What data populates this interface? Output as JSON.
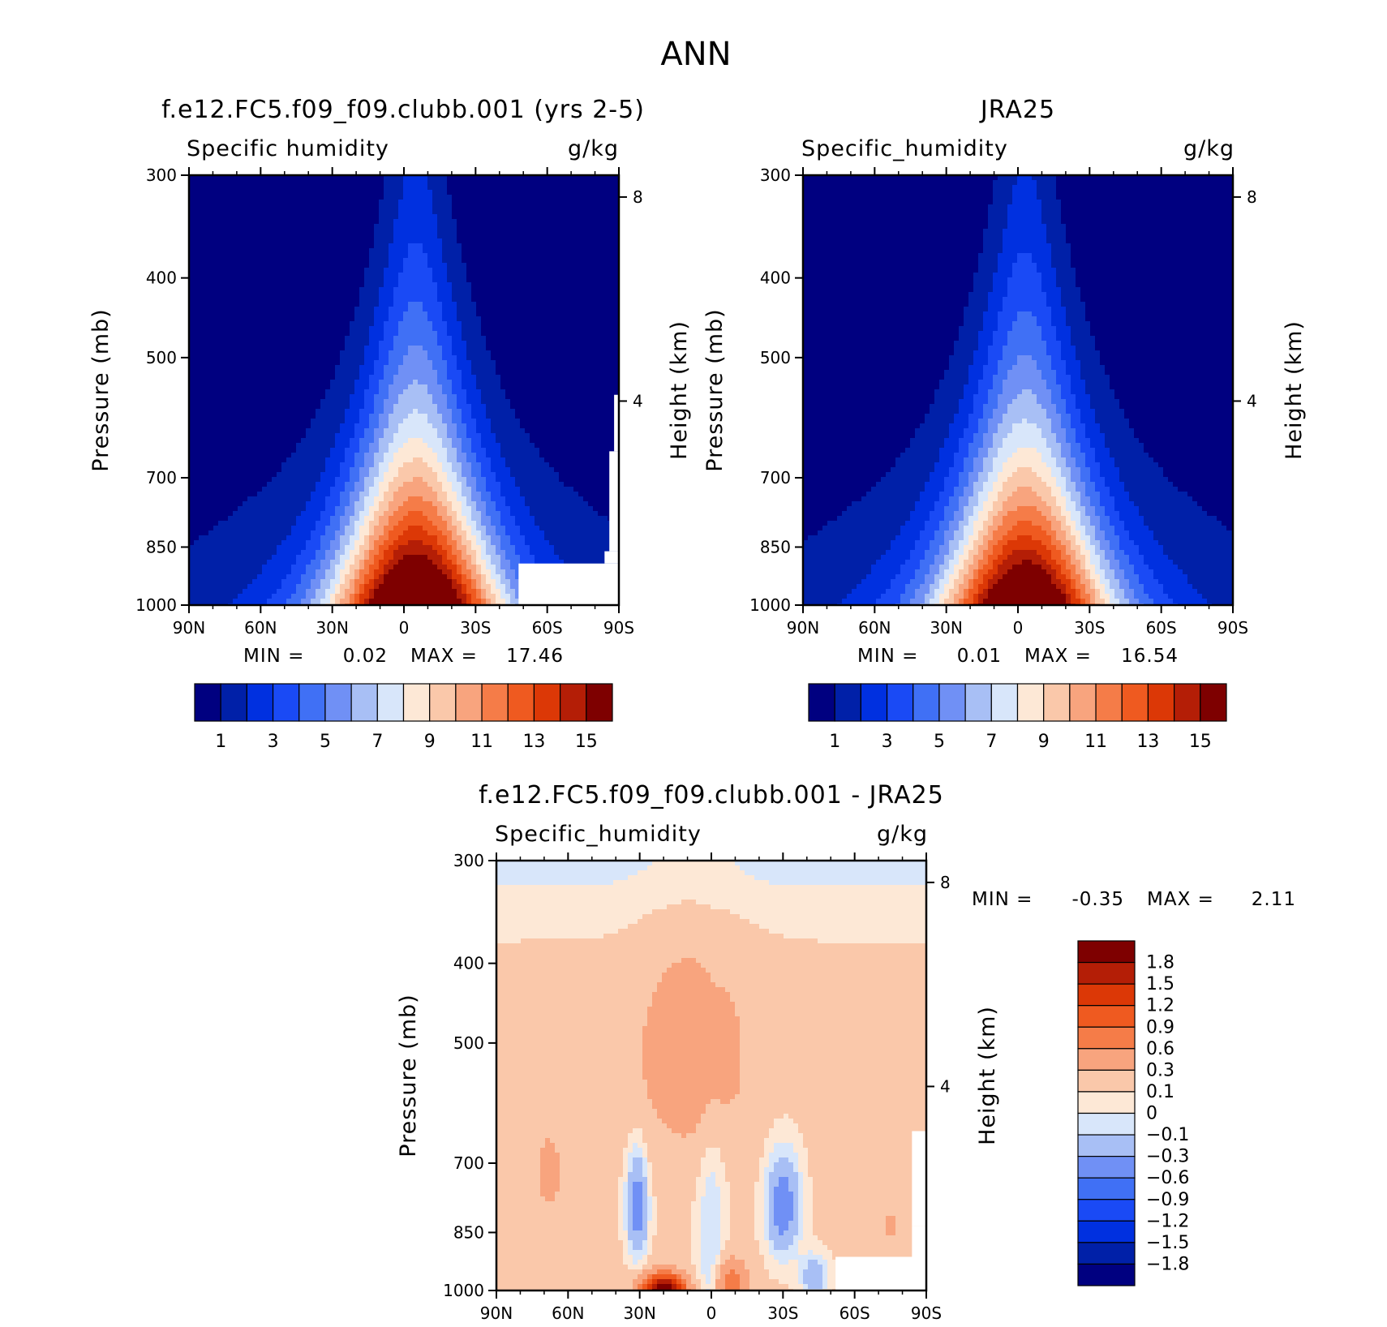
{
  "main_title": "ANN",
  "chart_data": [
    {
      "type": "heatmap",
      "title": "f.e12.FC5.f09_f09.clubb.001 (yrs 2-5)",
      "variable_label": "Specific humidity",
      "units": "g/kg",
      "ylabel": "Pressure (mb)",
      "y2label": "Height (km)",
      "x_ticks": [
        "90N",
        "60N",
        "30N",
        "0",
        "30S",
        "60S",
        "90S"
      ],
      "y_ticks": [
        "300",
        "400",
        "500",
        "700",
        "850",
        "1000"
      ],
      "y2_ticks": [
        "8",
        "4"
      ],
      "ylim": [
        1000,
        300
      ],
      "log_pressure": true,
      "contour_levels": [
        1,
        2,
        3,
        4,
        5,
        6,
        7,
        8,
        9,
        10,
        11,
        12,
        13,
        14,
        15
      ],
      "peak_latitude": -5,
      "peak_value": 17.46,
      "stat_min_label": "MIN =",
      "stat_min": "0.02",
      "stat_max_label": "MAX =",
      "stat_max": "17.46",
      "colorbar_labels": [
        "1",
        "3",
        "5",
        "7",
        "9",
        "11",
        "13",
        "15"
      ],
      "colors": [
        "#000080",
        "#0020a8",
        "#0030e0",
        "#1a4af5",
        "#4070f5",
        "#7090f5",
        "#a8bff5",
        "#d8e6fa",
        "#fde8d6",
        "#fac8aa",
        "#f8a47e",
        "#f57c48",
        "#ef5a20",
        "#dc3806",
        "#b41e06",
        "#7e0000"
      ]
    },
    {
      "type": "heatmap",
      "title": "JRA25",
      "variable_label": "Specific_humidity",
      "units": "g/kg",
      "ylabel": "Pressure (mb)",
      "y2label": "Height (km)",
      "x_ticks": [
        "90N",
        "60N",
        "30N",
        "0",
        "30S",
        "60S",
        "90S"
      ],
      "y_ticks": [
        "300",
        "400",
        "500",
        "700",
        "850",
        "1000"
      ],
      "y2_ticks": [
        "8",
        "4"
      ],
      "ylim": [
        1000,
        300
      ],
      "log_pressure": true,
      "contour_levels": [
        1,
        2,
        3,
        4,
        5,
        6,
        7,
        8,
        9,
        10,
        11,
        12,
        13,
        14,
        15
      ],
      "peak_latitude": -3,
      "peak_value": 16.54,
      "stat_min_label": "MIN =",
      "stat_min": "0.01",
      "stat_max_label": "MAX =",
      "stat_max": "16.54",
      "colorbar_labels": [
        "1",
        "3",
        "5",
        "7",
        "9",
        "11",
        "13",
        "15"
      ],
      "colors": [
        "#000080",
        "#0020a8",
        "#0030e0",
        "#1a4af5",
        "#4070f5",
        "#7090f5",
        "#a8bff5",
        "#d8e6fa",
        "#fde8d6",
        "#fac8aa",
        "#f8a47e",
        "#f57c48",
        "#ef5a20",
        "#dc3806",
        "#b41e06",
        "#7e0000"
      ]
    },
    {
      "type": "heatmap",
      "title": "f.e12.FC5.f09_f09.clubb.001 - JRA25",
      "variable_label": "Specific_humidity",
      "units": "g/kg",
      "ylabel": "Pressure (mb)",
      "y2label": "Height (km)",
      "x_ticks": [
        "90N",
        "60N",
        "30N",
        "0",
        "30S",
        "60S",
        "90S"
      ],
      "y_ticks": [
        "300",
        "400",
        "500",
        "700",
        "850",
        "1000"
      ],
      "y2_ticks": [
        "8",
        "4"
      ],
      "ylim": [
        1000,
        300
      ],
      "log_pressure": true,
      "contour_levels": [
        -1.8,
        -1.5,
        -1.2,
        -0.9,
        -0.6,
        -0.3,
        -0.1,
        0,
        0.1,
        0.3,
        0.6,
        0.9,
        1.2,
        1.5,
        1.8
      ],
      "stat_min_label": "MIN =",
      "stat_min": "-0.35",
      "stat_max_label": "MAX =",
      "stat_max": "2.11",
      "colorbar_labels": [
        "1.8",
        "1.5",
        "1.2",
        "0.9",
        "0.6",
        "0.3",
        "0.1",
        "0",
        "-0.1",
        "-0.3",
        "-0.6",
        "-0.9",
        "-1.2",
        "-1.5",
        "-1.8"
      ],
      "colors": [
        "#7e0000",
        "#b41e06",
        "#dc3806",
        "#ef5a20",
        "#f57c48",
        "#f8a47e",
        "#fac8aa",
        "#fde8d6",
        "#d8e6fa",
        "#a8bff5",
        "#7090f5",
        "#4070f5",
        "#1a4af5",
        "#0030e0",
        "#0020a8",
        "#000080"
      ]
    }
  ]
}
